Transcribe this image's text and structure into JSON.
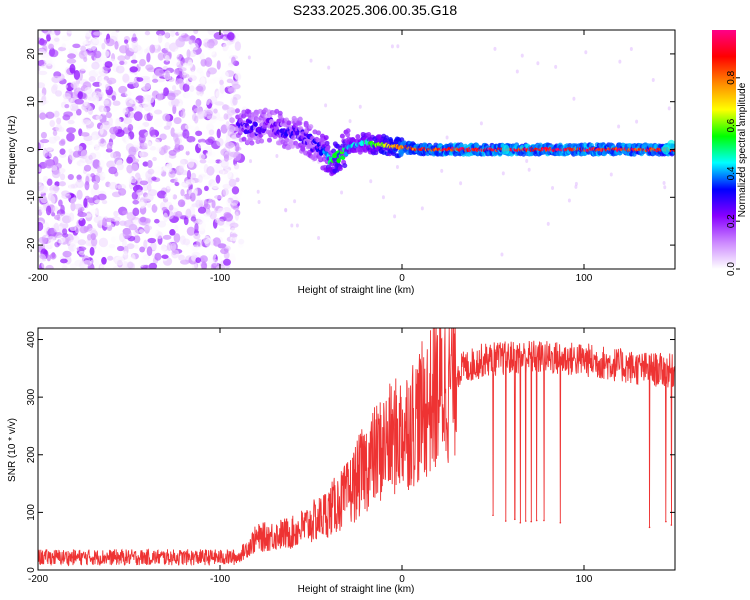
{
  "title": "S233.2025.306.00.35.G18",
  "chart_data": [
    {
      "type": "heatmap",
      "name": "spectrogram",
      "xlabel": "Height of straight line (km)",
      "ylabel": "Frequency (Hz)",
      "xlim": [
        -200,
        150
      ],
      "ylim": [
        -25,
        25
      ],
      "xticks": [
        -200,
        -100,
        0,
        100
      ],
      "yticks": [
        -20,
        -10,
        0,
        10,
        20
      ],
      "colorbar": {
        "label": "Normalized spectral amplitude",
        "ticks": [
          0.0,
          0.2,
          0.4,
          0.6,
          0.8
        ],
        "colors": [
          "#ffffff",
          "#cc88ff",
          "#8800ff",
          "#0000ff",
          "#00ffff",
          "#00ff00",
          "#ffff00",
          "#ff8800",
          "#ff0000",
          "#ff0088"
        ]
      },
      "noise_region_x": [
        -200,
        -90
      ],
      "ridge": [
        {
          "x": -90,
          "f": 5.0,
          "a": 0.3
        },
        {
          "x": -80,
          "f": 4.5,
          "a": 0.28
        },
        {
          "x": -72,
          "f": 5.0,
          "a": 0.25
        },
        {
          "x": -64,
          "f": 4.0,
          "a": 0.3
        },
        {
          "x": -56,
          "f": 3.0,
          "a": 0.28
        },
        {
          "x": -50,
          "f": 1.5,
          "a": 0.3
        },
        {
          "x": -44,
          "f": -0.5,
          "a": 0.35
        },
        {
          "x": -38,
          "f": -2.0,
          "a": 0.55
        },
        {
          "x": -34,
          "f": -1.5,
          "a": 0.6
        },
        {
          "x": -30,
          "f": 0.5,
          "a": 0.45
        },
        {
          "x": -25,
          "f": 1.0,
          "a": 0.45
        },
        {
          "x": -20,
          "f": 1.5,
          "a": 0.5
        },
        {
          "x": -15,
          "f": 1.0,
          "a": 0.6
        },
        {
          "x": -10,
          "f": 1.0,
          "a": 0.65
        },
        {
          "x": -5,
          "f": 0.5,
          "a": 0.75
        },
        {
          "x": 0,
          "f": 0.5,
          "a": 0.85
        },
        {
          "x": 10,
          "f": 0.0,
          "a": 0.9
        },
        {
          "x": 25,
          "f": 0.0,
          "a": 0.95
        },
        {
          "x": 50,
          "f": 0.0,
          "a": 0.95
        },
        {
          "x": 75,
          "f": 0.0,
          "a": 0.95
        },
        {
          "x": 100,
          "f": 0.0,
          "a": 0.95
        },
        {
          "x": 125,
          "f": 0.0,
          "a": 0.93
        },
        {
          "x": 150,
          "f": 0.0,
          "a": 0.9
        }
      ]
    },
    {
      "type": "line",
      "name": "snr",
      "xlabel": "Height of straight line (km)",
      "ylabel": "SNR (10 * v/v)",
      "xlim": [
        -200,
        150
      ],
      "ylim": [
        0,
        420
      ],
      "xticks": [
        -200,
        -100,
        0,
        100
      ],
      "yticks": [
        0,
        100,
        200,
        300,
        400
      ],
      "color": "#ee3333",
      "envelope": [
        {
          "x": -200,
          "y": 22
        },
        {
          "x": -90,
          "y": 22
        },
        {
          "x": -80,
          "y": 55
        },
        {
          "x": -60,
          "y": 65
        },
        {
          "x": -45,
          "y": 90
        },
        {
          "x": -30,
          "y": 130
        },
        {
          "x": -20,
          "y": 180
        },
        {
          "x": -10,
          "y": 215
        },
        {
          "x": 0,
          "y": 240
        },
        {
          "x": 10,
          "y": 270
        },
        {
          "x": 20,
          "y": 310
        },
        {
          "x": 30,
          "y": 345
        },
        {
          "x": 45,
          "y": 365
        },
        {
          "x": 70,
          "y": 370
        },
        {
          "x": 100,
          "y": 365
        },
        {
          "x": 130,
          "y": 350
        },
        {
          "x": 150,
          "y": 345
        }
      ],
      "dropouts": [
        {
          "x": 50,
          "y": 95
        },
        {
          "x": 57,
          "y": 85
        },
        {
          "x": 62,
          "y": 88
        },
        {
          "x": 65,
          "y": 82
        },
        {
          "x": 68,
          "y": 85
        },
        {
          "x": 71,
          "y": 84
        },
        {
          "x": 74,
          "y": 86
        },
        {
          "x": 78,
          "y": 86
        },
        {
          "x": 87,
          "y": 82
        },
        {
          "x": 136,
          "y": 74
        },
        {
          "x": 145,
          "y": 84
        },
        {
          "x": 148,
          "y": 78
        }
      ]
    }
  ]
}
